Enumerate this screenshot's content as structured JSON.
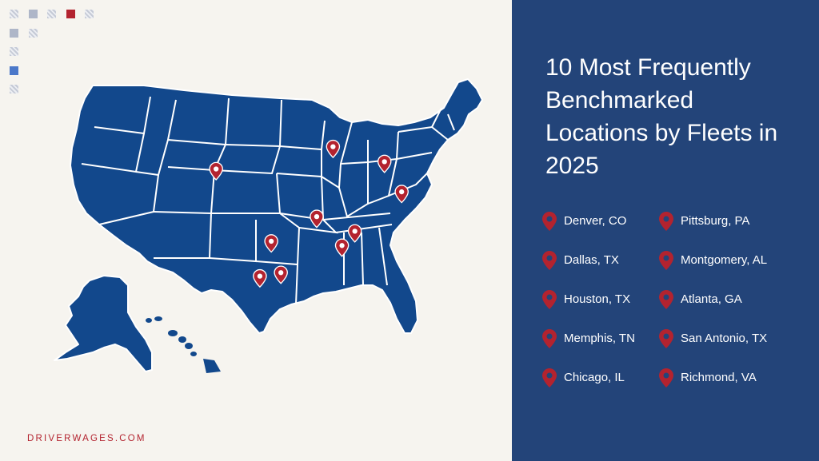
{
  "title": "10 Most Frequently Benchmarked Locations by Fleets in 2025",
  "brand": "DRIVERWAGES.COM",
  "colors": {
    "panel": "#234479",
    "map": "#12488c",
    "pin": "#b3232f",
    "background": "#f6f4ef"
  },
  "legend": [
    {
      "label": "Denver, CO"
    },
    {
      "label": "Pittsburg, PA"
    },
    {
      "label": "Dallas, TX"
    },
    {
      "label": "Montgomery, AL"
    },
    {
      "label": "Houston, TX"
    },
    {
      "label": "Atlanta, GA"
    },
    {
      "label": "Memphis, TN"
    },
    {
      "label": "San Antonio, TX"
    },
    {
      "label": "Chicago, IL"
    },
    {
      "label": "Richmond, VA"
    }
  ],
  "markers": [
    {
      "name": "Denver, CO",
      "lat": 39.74,
      "lon": -104.99
    },
    {
      "name": "Pittsburg, PA",
      "lat": 40.44,
      "lon": -79.99
    },
    {
      "name": "Dallas, TX",
      "lat": 32.78,
      "lon": -96.8
    },
    {
      "name": "Montgomery, AL",
      "lat": 32.37,
      "lon": -86.3
    },
    {
      "name": "Houston, TX",
      "lat": 29.76,
      "lon": -95.37
    },
    {
      "name": "Atlanta, GA",
      "lat": 33.75,
      "lon": -84.39
    },
    {
      "name": "Memphis, TN",
      "lat": 35.15,
      "lon": -90.05
    },
    {
      "name": "San Antonio, TX",
      "lat": 29.42,
      "lon": -98.49
    },
    {
      "name": "Chicago, IL",
      "lat": 41.88,
      "lon": -87.63
    },
    {
      "name": "Richmond, VA",
      "lat": 37.54,
      "lon": -77.44
    }
  ]
}
